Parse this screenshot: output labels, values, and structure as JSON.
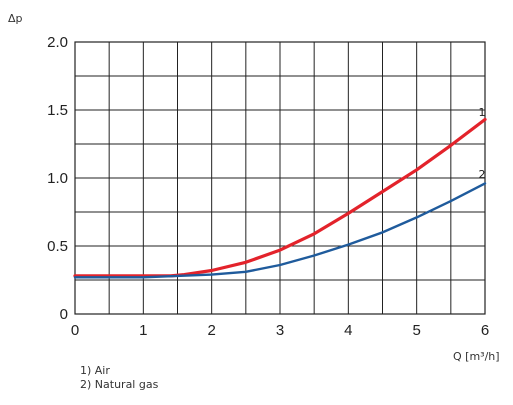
{
  "chart_data": {
    "type": "line",
    "ylabel": "Δp",
    "xlabel": "Q [m³/h]",
    "xlim": [
      0,
      6
    ],
    "ylim": [
      0,
      2.0
    ],
    "x_ticks": [
      "0",
      "1",
      "2",
      "3",
      "4",
      "5",
      "6"
    ],
    "y_ticks": [
      "0",
      "0.5",
      "1.0",
      "1.5",
      "2.0"
    ],
    "grid": true,
    "series": [
      {
        "name": "1",
        "color": "#e3232b",
        "x": [
          0,
          0.5,
          1.0,
          1.4,
          1.6,
          2.0,
          2.5,
          3.0,
          3.5,
          4.0,
          4.5,
          5.0,
          5.5,
          6.0
        ],
        "y": [
          0.28,
          0.28,
          0.28,
          0.28,
          0.29,
          0.32,
          0.38,
          0.47,
          0.59,
          0.74,
          0.9,
          1.06,
          1.24,
          1.43
        ]
      },
      {
        "name": "2",
        "color": "#1f5b9c",
        "x": [
          0,
          0.5,
          1.0,
          1.5,
          2.0,
          2.5,
          3.0,
          3.5,
          4.0,
          4.5,
          5.0,
          5.5,
          6.0
        ],
        "y": [
          0.27,
          0.27,
          0.27,
          0.28,
          0.29,
          0.31,
          0.36,
          0.43,
          0.51,
          0.6,
          0.71,
          0.83,
          0.96
        ]
      }
    ]
  },
  "legend": {
    "line1": "1) Air",
    "line2": "2) Natural gas"
  }
}
